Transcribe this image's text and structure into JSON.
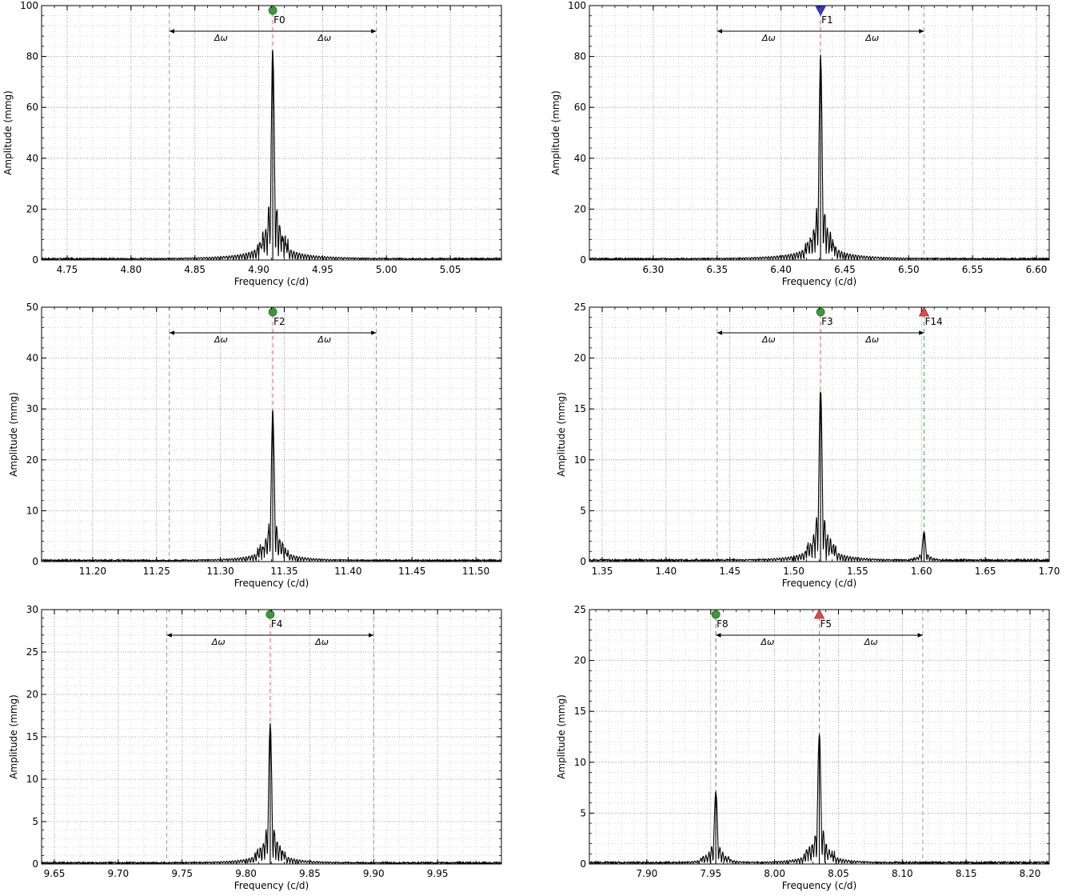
{
  "chart_data": [
    {
      "type": "line",
      "xlabel": "Frequency (c/d)",
      "ylabel": "Amplitude (mmg)",
      "xlim": [
        4.73,
        5.09
      ],
      "ylim": [
        0,
        100
      ],
      "xticks": [
        "4.75",
        "4.80",
        "4.85",
        "4.90",
        "4.95",
        "5.00",
        "5.05"
      ],
      "yticks": [
        "0",
        "20",
        "40",
        "60",
        "80",
        "100"
      ],
      "grid": true,
      "noise_level": 0.5,
      "peaks": [
        {
          "f": 4.911,
          "amp": 80
        }
      ],
      "markers": [
        {
          "label": "F0",
          "f": 4.911,
          "shape": "circle",
          "color": "#3a9a3a",
          "line_color": "#e06060"
        }
      ],
      "delta_omega": {
        "center": 4.911,
        "left": 4.83,
        "right": 4.992,
        "label": "Δω"
      }
    },
    {
      "type": "line",
      "xlabel": "Frequency (c/d)",
      "ylabel": "Amplitude (mmg)",
      "xlim": [
        6.25,
        6.61
      ],
      "ylim": [
        0,
        100
      ],
      "xticks": [
        "6.30",
        "6.35",
        "6.40",
        "6.45",
        "6.50",
        "6.55",
        "6.60"
      ],
      "yticks": [
        "0",
        "20",
        "40",
        "60",
        "80",
        "100"
      ],
      "grid": true,
      "noise_level": 0.5,
      "peaks": [
        {
          "f": 6.431,
          "amp": 78
        }
      ],
      "markers": [
        {
          "label": "F1",
          "f": 6.431,
          "shape": "triangle-down",
          "color": "#3a3ac8",
          "line_color": "#e06060"
        }
      ],
      "delta_omega": {
        "center": 6.431,
        "left": 6.35,
        "right": 6.512,
        "label": "Δω"
      }
    },
    {
      "type": "line",
      "xlabel": "Frequency (c/d)",
      "ylabel": "Amplitude (mmg)",
      "xlim": [
        11.16,
        11.52
      ],
      "ylim": [
        0,
        50
      ],
      "xticks": [
        "11.20",
        "11.25",
        "11.30",
        "11.35",
        "11.40",
        "11.45",
        "11.50"
      ],
      "yticks": [
        "0",
        "10",
        "20",
        "30",
        "40",
        "50"
      ],
      "grid": true,
      "noise_level": 0.25,
      "peaks": [
        {
          "f": 11.341,
          "amp": 28.5
        }
      ],
      "markers": [
        {
          "label": "F2",
          "f": 11.341,
          "shape": "circle",
          "color": "#3a9a3a",
          "line_color": "#e06060"
        }
      ],
      "delta_omega": {
        "center": 11.341,
        "left": 11.26,
        "right": 11.422,
        "label": "Δω"
      }
    },
    {
      "type": "line",
      "xlabel": "Frequency (c/d)",
      "ylabel": "Amplitude (mmg)",
      "xlim": [
        1.34,
        1.7
      ],
      "ylim": [
        0,
        25
      ],
      "xticks": [
        "1.35",
        "1.40",
        "1.45",
        "1.50",
        "1.55",
        "1.60",
        "1.65",
        "1.70"
      ],
      "yticks": [
        "0",
        "5",
        "10",
        "15",
        "20",
        "25"
      ],
      "grid": true,
      "noise_level": 0.15,
      "peaks": [
        {
          "f": 1.521,
          "amp": 16.5
        },
        {
          "f": 1.602,
          "amp": 2.8
        }
      ],
      "markers": [
        {
          "label": "F3",
          "f": 1.521,
          "shape": "circle",
          "color": "#3a9a3a",
          "line_color": "#e06060"
        },
        {
          "label": "F14",
          "f": 1.602,
          "shape": "triangle-up",
          "color": "#e04a4a",
          "line_color": "#4aa84a"
        }
      ],
      "delta_omega": {
        "center": 1.521,
        "left": 1.44,
        "right": 1.602,
        "label": "Δω"
      }
    },
    {
      "type": "line",
      "xlabel": "Frequency (c/d)",
      "ylabel": "Amplitude (mmg)",
      "xlim": [
        9.64,
        10.0
      ],
      "ylim": [
        0,
        30
      ],
      "xticks": [
        "9.65",
        "9.70",
        "9.75",
        "9.80",
        "9.85",
        "9.90",
        "9.95"
      ],
      "yticks": [
        "0",
        "5",
        "10",
        "15",
        "20",
        "25",
        "30"
      ],
      "grid": true,
      "noise_level": 0.15,
      "peaks": [
        {
          "f": 9.819,
          "amp": 16
        }
      ],
      "markers": [
        {
          "label": "F4",
          "f": 9.819,
          "shape": "circle",
          "color": "#3a9a3a",
          "line_color": "#e06060"
        }
      ],
      "delta_omega": {
        "center": 9.819,
        "left": 9.738,
        "right": 9.9,
        "label": "Δω"
      }
    },
    {
      "type": "line",
      "xlabel": "Frequency (c/d)",
      "ylabel": "Amplitude (mmg)",
      "xlim": [
        7.855,
        8.215
      ],
      "ylim": [
        0,
        25
      ],
      "xticks": [
        "7.90",
        "7.95",
        "8.00",
        "8.05",
        "8.10",
        "8.15",
        "8.20"
      ],
      "yticks": [
        "0",
        "5",
        "10",
        "15",
        "20",
        "25"
      ],
      "grid": true,
      "noise_level": 0.15,
      "peaks": [
        {
          "f": 8.035,
          "amp": 12.5
        },
        {
          "f": 7.954,
          "amp": 6.9
        }
      ],
      "markers": [
        {
          "label": "F5",
          "f": 8.035,
          "shape": "triangle-up",
          "color": "#e04a4a",
          "line_color": "#e06060"
        },
        {
          "label": "F8",
          "f": 7.954,
          "shape": "circle",
          "color": "#3a9a3a",
          "line_color": "#4aa84a"
        }
      ],
      "delta_omega": {
        "center": 8.035,
        "left": 7.954,
        "right": 8.116,
        "label": "Δω"
      }
    }
  ]
}
